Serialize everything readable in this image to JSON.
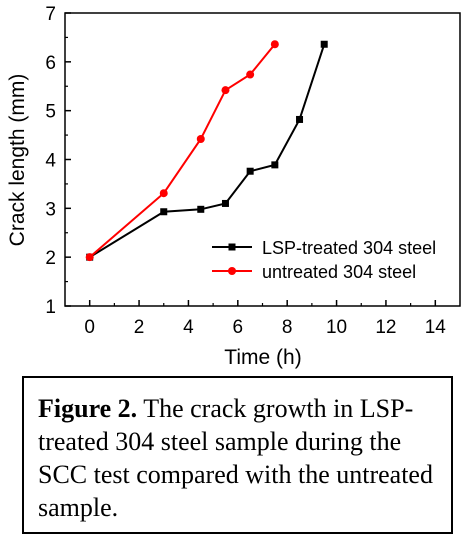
{
  "chart_data": {
    "type": "line",
    "xlabel": "Time (h)",
    "ylabel": "Crack length (mm)",
    "xlim": [
      -1,
      15
    ],
    "ylim": [
      1,
      7
    ],
    "xticks": [
      0,
      2,
      4,
      6,
      8,
      10,
      12,
      14
    ],
    "yticks": [
      1,
      2,
      3,
      4,
      5,
      6,
      7
    ],
    "legend_position": "bottom-right",
    "series": [
      {
        "name": "LSP-treated 304 steel",
        "color": "#000000",
        "marker": "square",
        "x": [
          0,
          3,
          4.5,
          5.5,
          6.5,
          7.5,
          8.5,
          9.5
        ],
        "y": [
          2.0,
          2.93,
          2.98,
          3.1,
          3.76,
          3.89,
          4.82,
          6.36
        ]
      },
      {
        "name": "untreated 304 steel",
        "color": "#ff0000",
        "marker": "circle",
        "x": [
          0,
          3,
          4.5,
          5.5,
          6.5,
          7.5
        ],
        "y": [
          2.0,
          3.31,
          4.42,
          5.42,
          5.74,
          6.36
        ]
      }
    ]
  },
  "caption": {
    "label": "Figure 2.",
    "text": " The crack growth in LSP-treated 304 steel sample during the SCC test compared with the untreated sample."
  }
}
